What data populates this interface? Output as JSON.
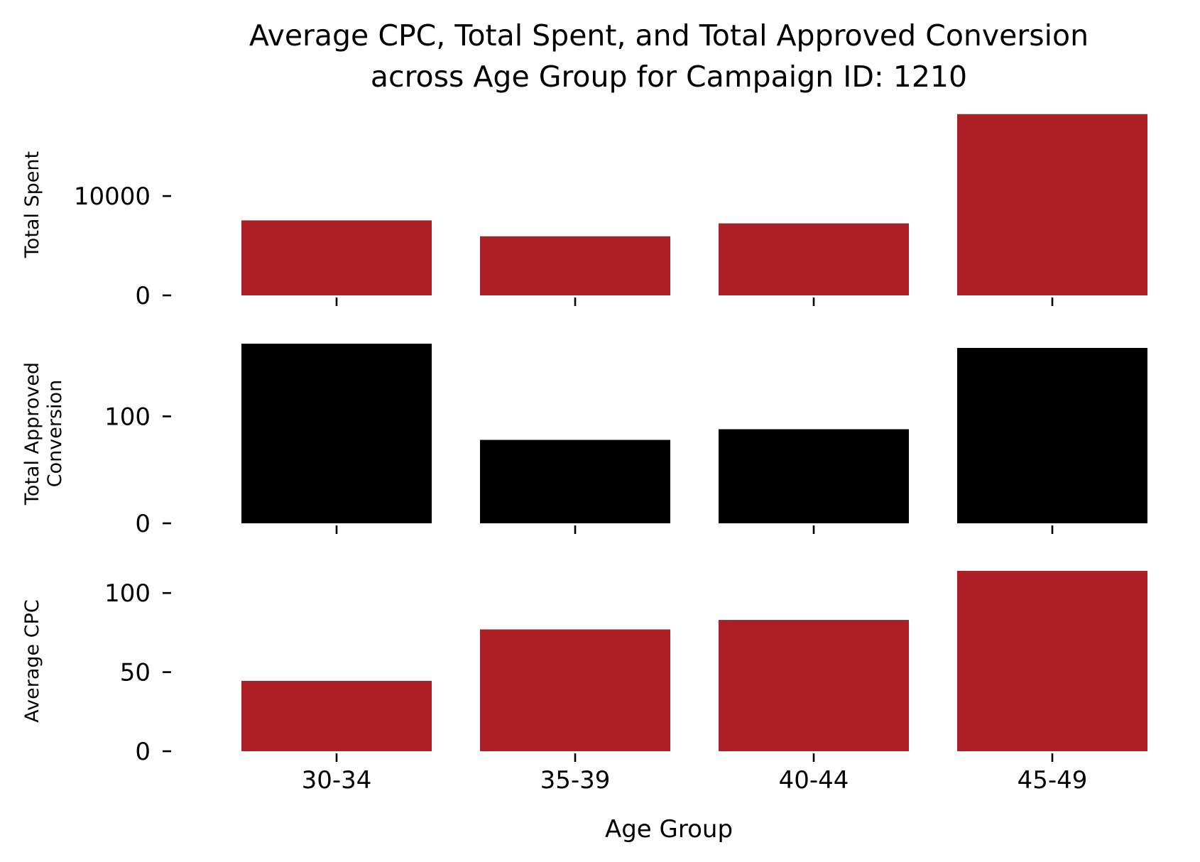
{
  "chart_data": {
    "type": "bar",
    "title_lines": [
      "Average CPC, Total Spent, and Total Approved Conversion",
      "across Age Group for Campaign ID: 1210"
    ],
    "xlabel": "Age Group",
    "categories": [
      "30-34",
      "35-39",
      "40-44",
      "45-49"
    ],
    "grid": false,
    "panels": [
      {
        "id": "total-spent",
        "ylabel_lines": [
          "Total Spent"
        ],
        "color": "#ad1f24",
        "ylim": [
          0,
          18300
        ],
        "yticks": [
          0,
          10000
        ],
        "values": [
          7550,
          5950,
          7250,
          18250
        ]
      },
      {
        "id": "total-approved-conversion",
        "ylabel_lines": [
          "Total Approved",
          "Conversion"
        ],
        "color": "#000000",
        "ylim": [
          0,
          168
        ],
        "yticks": [
          0,
          100
        ],
        "values": [
          168,
          78,
          88,
          164
        ]
      },
      {
        "id": "average-cpc",
        "ylabel_lines": [
          "Average CPC"
        ],
        "color": "#ad1f24",
        "ylim": [
          0,
          114
        ],
        "yticks": [
          0,
          50,
          100
        ],
        "values": [
          44.5,
          77,
          83,
          114
        ]
      }
    ]
  }
}
